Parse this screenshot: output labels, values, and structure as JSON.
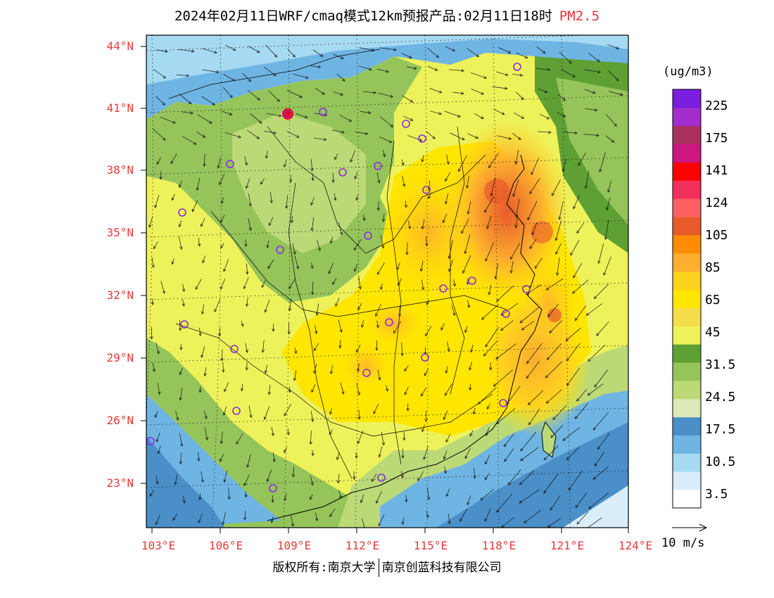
{
  "title": {
    "main": "2024年02月11日WRF/cmaq模式12km预报产品:02月11日18时",
    "pollutant": "PM2.5"
  },
  "lat_labels": [
    "44°N",
    "41°N",
    "38°N",
    "35°N",
    "32°N",
    "29°N",
    "26°N",
    "23°N"
  ],
  "lon_labels": [
    "103°E",
    "106°E",
    "109°E",
    "112°E",
    "115°E",
    "118°E",
    "121°E",
    "124°E"
  ],
  "colorbar": {
    "unit": "(ug/m3)",
    "labels": [
      "225",
      "175",
      "141",
      "124",
      "105",
      "85",
      "65",
      "45",
      "31.5",
      "24.5",
      "17.5",
      "10.5",
      "3.5"
    ],
    "colors": [
      "#ffffff",
      "#d9eefa",
      "#a6daf2",
      "#6fb5e3",
      "#4a8fc8",
      "#dde9b8",
      "#bcd978",
      "#95c45a",
      "#5fa035",
      "#eef25a",
      "#f5dd4a",
      "#ffe600",
      "#ffd21e",
      "#fcae2e",
      "#ff8c00",
      "#e85a2c",
      "#ff6060",
      "#f0305a",
      "#ff0000",
      "#cc1680",
      "#aa3060",
      "#a22ecc",
      "#7a1ee0"
    ]
  },
  "vector_scale": "10 m/s",
  "footer": {
    "left": "版权所有:南京大学",
    "right": "南京创蓝科技有限公司"
  }
}
